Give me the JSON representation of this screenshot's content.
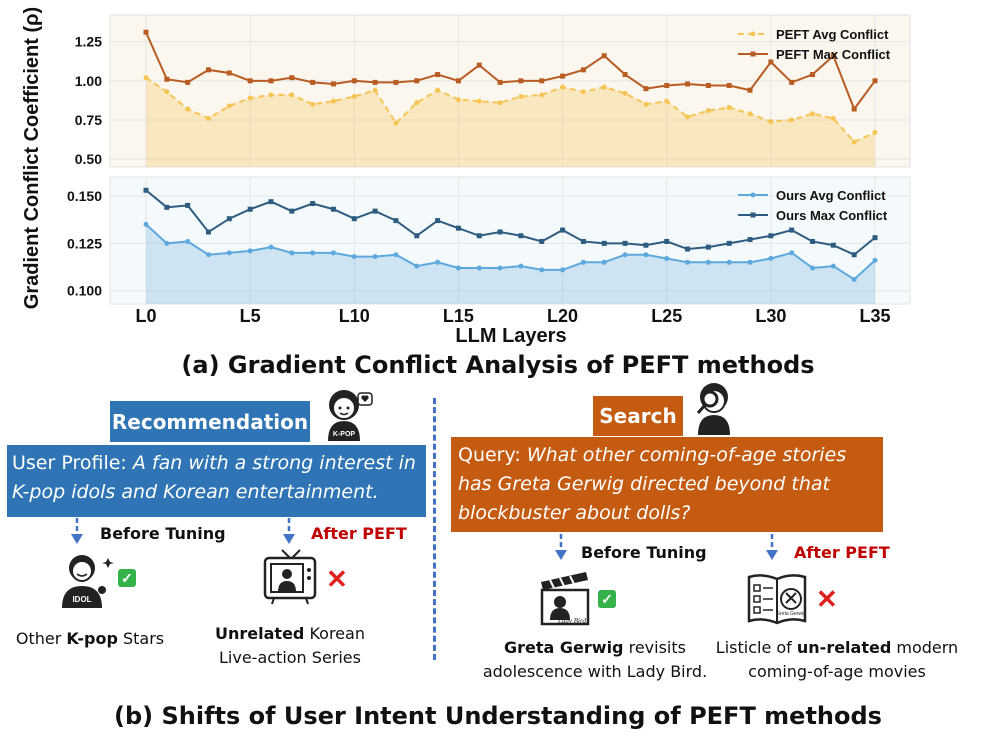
{
  "chart_data": {
    "type": "line",
    "ylabel": "Gradient Conflict Coefficient (ρ)",
    "xlabel": "LLM Layers",
    "x_ticks": [
      "L0",
      "L5",
      "L10",
      "L15",
      "L20",
      "L25",
      "L30",
      "L35"
    ],
    "panels": [
      {
        "name": "peft",
        "ylim": [
          0.45,
          1.42
        ],
        "yticks": [
          "0.50",
          "0.75",
          "1.00",
          "1.25"
        ],
        "ytick_values": [
          0.5,
          0.75,
          1.0,
          1.25
        ],
        "series": [
          {
            "name": "PEFT Avg Conflict",
            "style": "dashed",
            "color": "#F6C554",
            "fill": true,
            "values": [
              1.02,
              0.93,
              0.82,
              0.76,
              0.84,
              0.89,
              0.91,
              0.91,
              0.85,
              0.87,
              0.9,
              0.94,
              0.73,
              0.86,
              0.94,
              0.88,
              0.87,
              0.86,
              0.9,
              0.91,
              0.96,
              0.93,
              0.96,
              0.92,
              0.85,
              0.87,
              0.77,
              0.81,
              0.83,
              0.79,
              0.74,
              0.75,
              0.79,
              0.76,
              0.61,
              0.67
            ]
          },
          {
            "name": "PEFT Max Conflict",
            "style": "solid",
            "color": "#B85C22",
            "fill": false,
            "values": [
              1.31,
              1.01,
              0.99,
              1.07,
              1.05,
              1.0,
              1.0,
              1.02,
              0.99,
              0.98,
              1.0,
              0.99,
              0.99,
              1.0,
              1.04,
              1.0,
              1.1,
              0.99,
              1.0,
              1.0,
              1.03,
              1.07,
              1.16,
              1.04,
              0.95,
              0.97,
              0.98,
              0.97,
              0.97,
              0.94,
              1.12,
              0.99,
              1.04,
              1.16,
              0.82,
              1.0
            ]
          }
        ]
      },
      {
        "name": "ours",
        "ylim": [
          0.093,
          0.16
        ],
        "yticks": [
          "0.100",
          "0.125",
          "0.150"
        ],
        "ytick_values": [
          0.1,
          0.125,
          0.15
        ],
        "series": [
          {
            "name": "Ours Avg Conflict",
            "style": "solid",
            "color": "#5DA9DD",
            "fill": true,
            "values": [
              0.135,
              0.125,
              0.126,
              0.119,
              0.12,
              0.121,
              0.123,
              0.12,
              0.12,
              0.12,
              0.118,
              0.118,
              0.119,
              0.113,
              0.115,
              0.112,
              0.112,
              0.112,
              0.113,
              0.111,
              0.111,
              0.115,
              0.115,
              0.119,
              0.119,
              0.117,
              0.115,
              0.115,
              0.115,
              0.115,
              0.117,
              0.12,
              0.112,
              0.113,
              0.106,
              0.116
            ]
          },
          {
            "name": "Ours Max Conflict",
            "style": "solid",
            "color": "#2E5C80",
            "fill": false,
            "values": [
              0.153,
              0.144,
              0.145,
              0.131,
              0.138,
              0.143,
              0.147,
              0.142,
              0.146,
              0.143,
              0.138,
              0.142,
              0.137,
              0.129,
              0.137,
              0.133,
              0.129,
              0.131,
              0.129,
              0.126,
              0.132,
              0.126,
              0.125,
              0.125,
              0.124,
              0.126,
              0.122,
              0.123,
              0.125,
              0.127,
              0.129,
              0.132,
              0.126,
              0.124,
              0.119,
              0.128
            ]
          }
        ]
      }
    ]
  },
  "figure": {
    "title_a": "(a) Gradient Conflict Analysis of PEFT methods",
    "title_b": "(b) Shifts of User Intent Understanding of PEFT methods"
  },
  "recommendation": {
    "label": "Recommendation",
    "profile_prefix": "User Profile: ",
    "profile_text": "A fan with a strong interest in K-pop idols and Korean entertainment.",
    "before_label": "Before Tuning",
    "after_label": "After PEFT",
    "before_result_pre": "Other ",
    "before_result_bold": "K-pop",
    "before_result_post": " Stars",
    "after_result_bold": "Unrelated",
    "after_result_post": " Korean",
    "after_result_line2": "Live-action Series",
    "avatar_badge": "K-POP",
    "idol_badge": "IDOL"
  },
  "search": {
    "label": "Search",
    "query_prefix": "Query: ",
    "query_text": "What other coming-of-age stories has Greta Gerwig directed beyond that blockbuster about dolls?",
    "before_label": "Before Tuning",
    "after_label": "After PEFT",
    "before_result_bold": "Greta Gerwig",
    "before_result_post": " revisits",
    "before_result_line2": "adolescence with Lady Bird.",
    "after_result_pre": "Listicle of ",
    "after_result_bold": "un-related",
    "after_result_post": " modern",
    "after_result_line2": "coming-of-age movies",
    "clapper_caption": "Lady Bird",
    "book_badge": "Greta Gerwig"
  },
  "icons": {
    "check": "✅",
    "cross": "❌"
  }
}
